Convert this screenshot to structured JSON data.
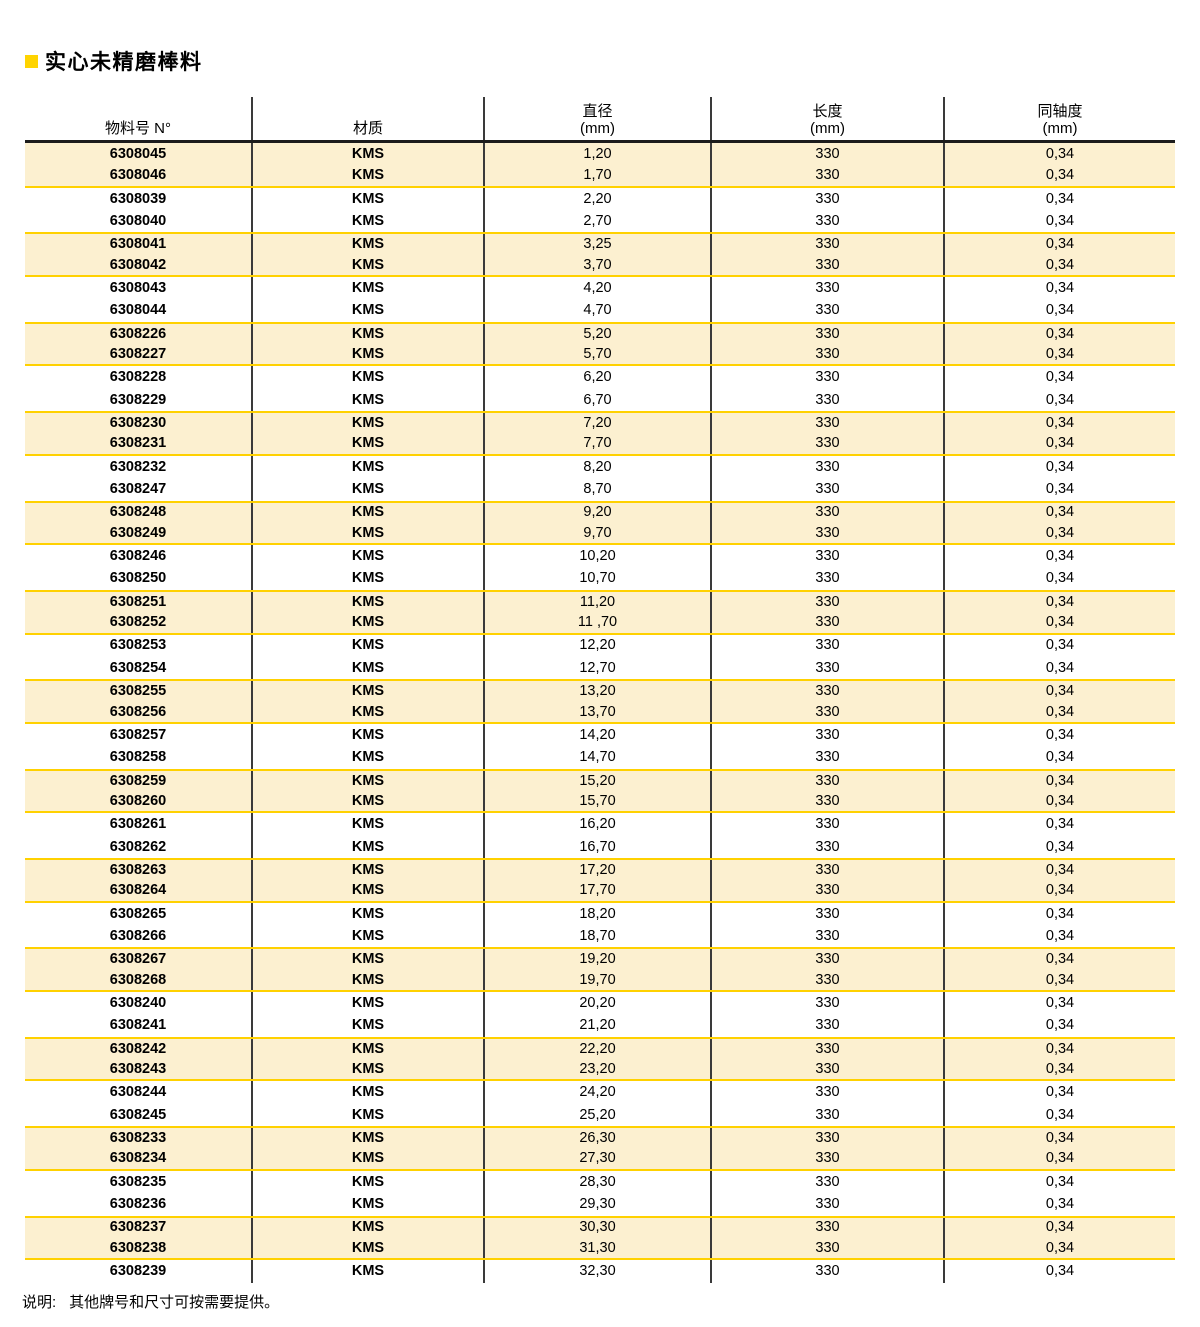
{
  "title": {
    "text": "实心未精磨棒料"
  },
  "colors": {
    "bullet": "#FFD400",
    "band_yellow": "#FCF0D0",
    "gold_rule": "#FFD100",
    "header_rule": "#1c1c1c",
    "column_rule": "#3a3a3a"
  },
  "table": {
    "columns": [
      {
        "id": "part_no",
        "line1": "",
        "line2": "物料号 N°"
      },
      {
        "id": "material",
        "line1": "",
        "line2": "材质"
      },
      {
        "id": "diameter",
        "line1": "直径",
        "line2": "(mm)"
      },
      {
        "id": "length",
        "line1": "长度",
        "line2": "(mm)"
      },
      {
        "id": "concentricity",
        "line1": "同轴度",
        "line2": "(mm)"
      }
    ],
    "rows": [
      [
        "6308045",
        "KMS",
        "1,20",
        "330",
        "0,34"
      ],
      [
        "6308046",
        "KMS",
        "1,70",
        "330",
        "0,34"
      ],
      [
        "6308039",
        "KMS",
        "2,20",
        "330",
        "0,34"
      ],
      [
        "6308040",
        "KMS",
        "2,70",
        "330",
        "0,34"
      ],
      [
        "6308041",
        "KMS",
        "3,25",
        "330",
        "0,34"
      ],
      [
        "6308042",
        "KMS",
        "3,70",
        "330",
        "0,34"
      ],
      [
        "6308043",
        "KMS",
        "4,20",
        "330",
        "0,34"
      ],
      [
        "6308044",
        "KMS",
        "4,70",
        "330",
        "0,34"
      ],
      [
        "6308226",
        "KMS",
        "5,20",
        "330",
        "0,34"
      ],
      [
        "6308227",
        "KMS",
        "5,70",
        "330",
        "0,34"
      ],
      [
        "6308228",
        "KMS",
        "6,20",
        "330",
        "0,34"
      ],
      [
        "6308229",
        "KMS",
        "6,70",
        "330",
        "0,34"
      ],
      [
        "6308230",
        "KMS",
        "7,20",
        "330",
        "0,34"
      ],
      [
        "6308231",
        "KMS",
        "7,70",
        "330",
        "0,34"
      ],
      [
        "6308232",
        "KMS",
        "8,20",
        "330",
        "0,34"
      ],
      [
        "6308247",
        "KMS",
        "8,70",
        "330",
        "0,34"
      ],
      [
        "6308248",
        "KMS",
        "9,20",
        "330",
        "0,34"
      ],
      [
        "6308249",
        "KMS",
        "9,70",
        "330",
        "0,34"
      ],
      [
        "6308246",
        "KMS",
        "10,20",
        "330",
        "0,34"
      ],
      [
        "6308250",
        "KMS",
        "10,70",
        "330",
        "0,34"
      ],
      [
        "6308251",
        "KMS",
        "11,20",
        "330",
        "0,34"
      ],
      [
        "6308252",
        "KMS",
        "11 ,70",
        "330",
        "0,34"
      ],
      [
        "6308253",
        "KMS",
        "12,20",
        "330",
        "0,34"
      ],
      [
        "6308254",
        "KMS",
        "12,70",
        "330",
        "0,34"
      ],
      [
        "6308255",
        "KMS",
        "13,20",
        "330",
        "0,34"
      ],
      [
        "6308256",
        "KMS",
        "13,70",
        "330",
        "0,34"
      ],
      [
        "6308257",
        "KMS",
        "14,20",
        "330",
        "0,34"
      ],
      [
        "6308258",
        "KMS",
        "14,70",
        "330",
        "0,34"
      ],
      [
        "6308259",
        "KMS",
        "15,20",
        "330",
        "0,34"
      ],
      [
        "6308260",
        "KMS",
        "15,70",
        "330",
        "0,34"
      ],
      [
        "6308261",
        "KMS",
        "16,20",
        "330",
        "0,34"
      ],
      [
        "6308262",
        "KMS",
        "16,70",
        "330",
        "0,34"
      ],
      [
        "6308263",
        "KMS",
        "17,20",
        "330",
        "0,34"
      ],
      [
        "6308264",
        "KMS",
        "17,70",
        "330",
        "0,34"
      ],
      [
        "6308265",
        "KMS",
        "18,20",
        "330",
        "0,34"
      ],
      [
        "6308266",
        "KMS",
        "18,70",
        "330",
        "0,34"
      ],
      [
        "6308267",
        "KMS",
        "19,20",
        "330",
        "0,34"
      ],
      [
        "6308268",
        "KMS",
        "19,70",
        "330",
        "0,34"
      ],
      [
        "6308240",
        "KMS",
        "20,20",
        "330",
        "0,34"
      ],
      [
        "6308241",
        "KMS",
        "21,20",
        "330",
        "0,34"
      ],
      [
        "6308242",
        "KMS",
        "22,20",
        "330",
        "0,34"
      ],
      [
        "6308243",
        "KMS",
        "23,20",
        "330",
        "0,34"
      ],
      [
        "6308244",
        "KMS",
        "24,20",
        "330",
        "0,34"
      ],
      [
        "6308245",
        "KMS",
        "25,20",
        "330",
        "0,34"
      ],
      [
        "6308233",
        "KMS",
        "26,30",
        "330",
        "0,34"
      ],
      [
        "6308234",
        "KMS",
        "27,30",
        "330",
        "0,34"
      ],
      [
        "6308235",
        "KMS",
        "28,30",
        "330",
        "0,34"
      ],
      [
        "6308236",
        "KMS",
        "29,30",
        "330",
        "0,34"
      ],
      [
        "6308237",
        "KMS",
        "30,30",
        "330",
        "0,34"
      ],
      [
        "6308238",
        "KMS",
        "31,30",
        "330",
        "0,34"
      ],
      [
        "6308239",
        "KMS",
        "32,30",
        "330",
        "0,34"
      ]
    ]
  },
  "footnote": {
    "label": "说明:",
    "text": "其他牌号和尺寸可按需要提供。"
  }
}
